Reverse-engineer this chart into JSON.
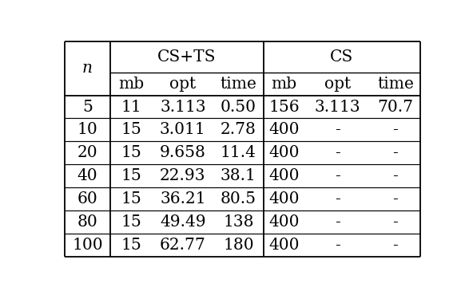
{
  "header_group": [
    "CS+TS",
    "CS"
  ],
  "header_sub": [
    "mb",
    "opt",
    "time",
    "mb",
    "opt",
    "time"
  ],
  "n_label": "n",
  "rows": [
    [
      "5",
      "11",
      "3.113",
      "0.50",
      "156",
      "3.113",
      "70.7"
    ],
    [
      "10",
      "15",
      "3.011",
      "2.78",
      "400",
      "-",
      "-"
    ],
    [
      "20",
      "15",
      "9.658",
      "11.4",
      "400",
      "-",
      "-"
    ],
    [
      "40",
      "15",
      "22.93",
      "38.1",
      "400",
      "-",
      "-"
    ],
    [
      "60",
      "15",
      "36.21",
      "80.5",
      "400",
      "-",
      "-"
    ],
    [
      "80",
      "15",
      "49.49",
      "138",
      "400",
      "-",
      "-"
    ],
    [
      "100",
      "15",
      "62.77",
      "180",
      "400",
      "-",
      "-"
    ]
  ],
  "bg_color": "#ffffff",
  "text_color": "#000000",
  "line_color": "#000000",
  "font_size": 14.5
}
